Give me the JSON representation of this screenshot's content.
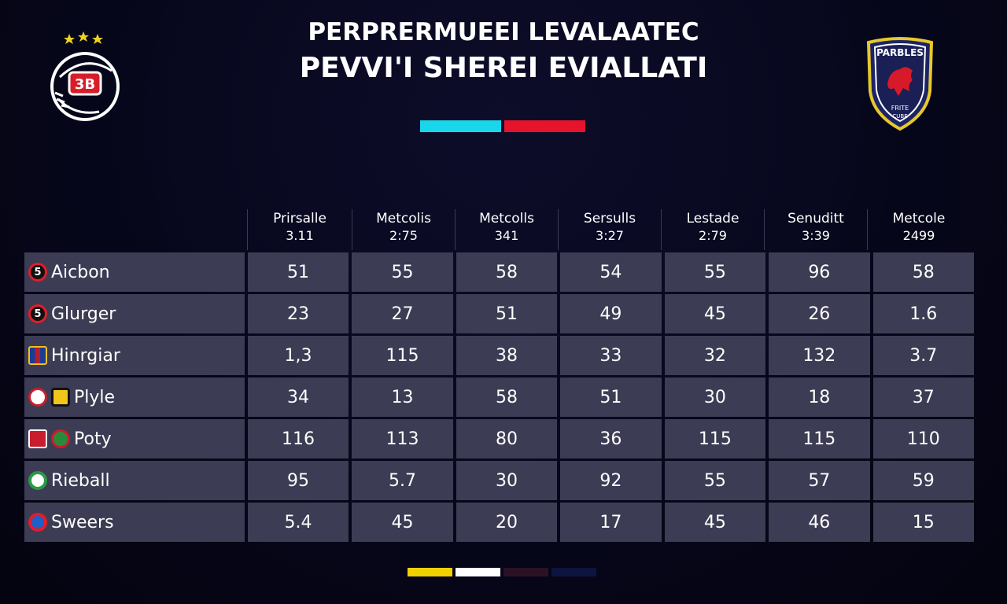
{
  "header": {
    "title_line1": "PERPRERMUEEI LEVALAATEC",
    "title_line2": "PEVVI'I SHEREI EVIALLATI",
    "accent_colors": [
      "#1ad6ea",
      "#e5142a"
    ]
  },
  "logos": {
    "left": {
      "icon": "club-crest-left-icon",
      "text": "3B"
    },
    "right": {
      "icon": "club-shield-right-icon",
      "top_text": "PARBLES",
      "bottom_text": "FRITE",
      "bottom_text2": "CUBE"
    }
  },
  "table": {
    "columns": [
      {
        "label": "Prirsalle",
        "sub": "3.11"
      },
      {
        "label": "Metcolis",
        "sub": "2:75"
      },
      {
        "label": "Metcolls",
        "sub": "341"
      },
      {
        "label": "Sersulls",
        "sub": "3:27"
      },
      {
        "label": "Lestade",
        "sub": "2:79"
      },
      {
        "label": "Senuditt",
        "sub": "3:39"
      },
      {
        "label": "Metcole",
        "sub": "2499"
      }
    ],
    "rows": [
      {
        "name": "Aicbon",
        "badges": [
          "5"
        ],
        "values": [
          "51",
          "55",
          "58",
          "54",
          "55",
          "96",
          "58"
        ]
      },
      {
        "name": "Glurger",
        "badges": [
          "5"
        ],
        "values": [
          "23",
          "27",
          "51",
          "49",
          "45",
          "26",
          "1.6"
        ]
      },
      {
        "name": "Hinrgiar",
        "badges": [
          ""
        ],
        "values": [
          "1,3",
          "115",
          "38",
          "33",
          "32",
          "132",
          "3.7"
        ]
      },
      {
        "name": "Plyle",
        "badges": [
          "",
          ""
        ],
        "values": [
          "34",
          "13",
          "58",
          "51",
          "30",
          "18",
          "37"
        ]
      },
      {
        "name": "Poty",
        "badges": [
          "",
          ""
        ],
        "values": [
          "116",
          "113",
          "80",
          "36",
          "115",
          "115",
          "110"
        ]
      },
      {
        "name": "Rieball",
        "badges": [
          ""
        ],
        "values": [
          "95",
          "5.7",
          "30",
          "92",
          "55",
          "57",
          "59"
        ]
      },
      {
        "name": "Sweers",
        "badges": [
          ""
        ],
        "values": [
          "5.4",
          "45",
          "20",
          "17",
          "45",
          "46",
          "15"
        ]
      }
    ]
  },
  "footer": {
    "bar_colors": [
      "#f0d000",
      "#ffffff",
      "#2a1224",
      "#0e1440"
    ]
  }
}
